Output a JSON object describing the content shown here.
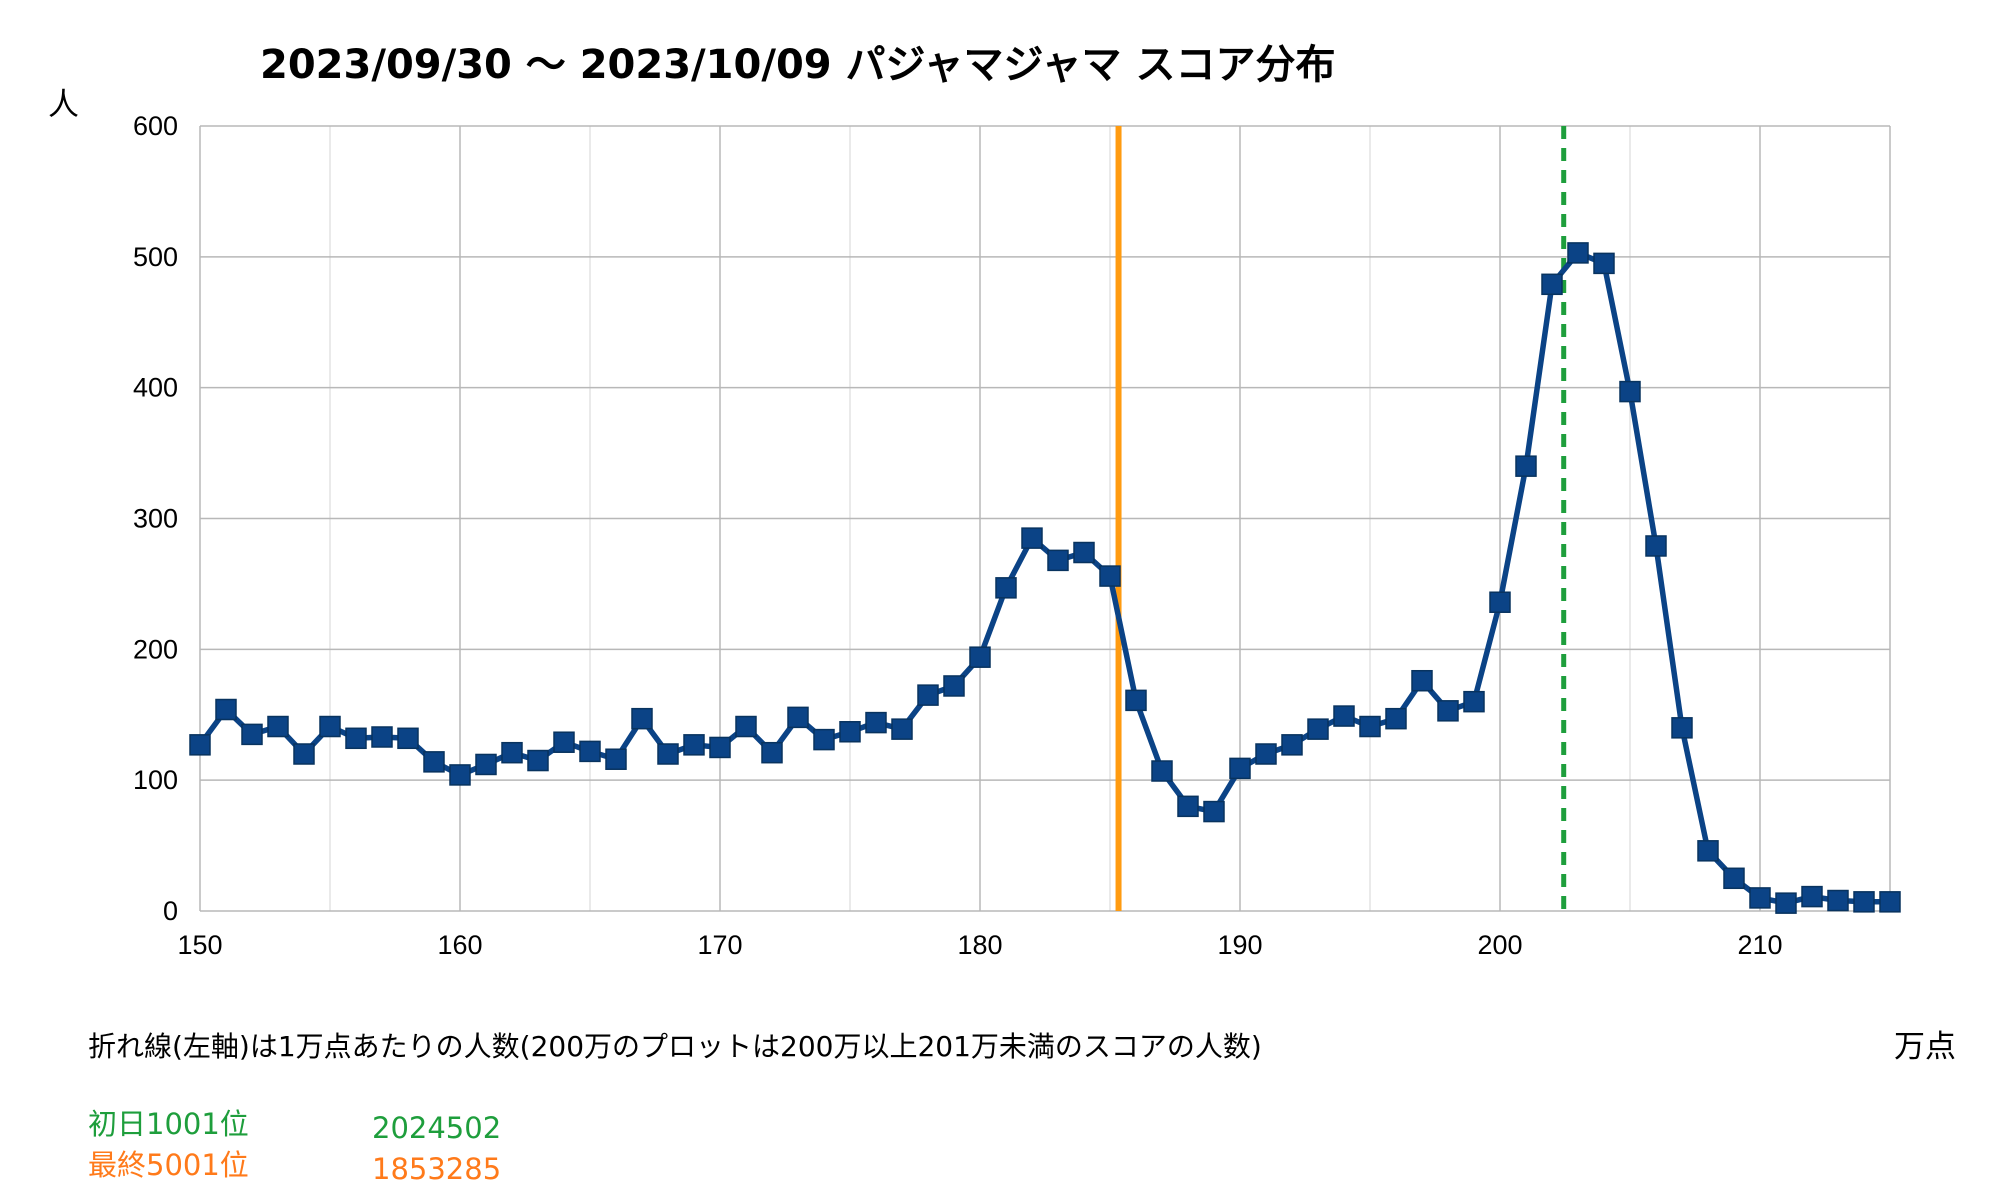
{
  "chart_data": {
    "type": "line",
    "title": "2023/09/30 〜 2023/10/09 パジャマジャマ スコア分布",
    "ylabel": "人",
    "xlabel": "万点",
    "note": "折れ線(左軸)は1万点あたりの人数(200万のプロットは200万以上201万未満のスコアの人数)",
    "xlim": [
      150,
      215
    ],
    "ylim": [
      0,
      600
    ],
    "x_ticks": [
      "150",
      "160",
      "170",
      "180",
      "190",
      "200",
      "210"
    ],
    "y_ticks": [
      "0",
      "100",
      "200",
      "300",
      "400",
      "500",
      "600"
    ],
    "grid": true,
    "series": [
      {
        "color": "#0b4386",
        "x": [
          150,
          151,
          152,
          153,
          154,
          155,
          156,
          157,
          158,
          159,
          160,
          161,
          162,
          163,
          164,
          165,
          166,
          167,
          168,
          169,
          170,
          171,
          172,
          173,
          174,
          175,
          176,
          177,
          178,
          179,
          180,
          181,
          182,
          183,
          184,
          185,
          186,
          187,
          188,
          189,
          190,
          191,
          192,
          193,
          194,
          195,
          196,
          197,
          198,
          199,
          200,
          201,
          202,
          203,
          204,
          205,
          206,
          207,
          208,
          209,
          210,
          211,
          212,
          213,
          214,
          215
        ],
        "y": [
          127,
          154,
          135,
          141,
          120,
          141,
          132,
          133,
          132,
          114,
          104,
          112,
          121,
          115,
          129,
          122,
          116,
          147,
          120,
          127,
          125,
          141,
          121,
          148,
          131,
          137,
          144,
          139,
          165,
          172,
          194,
          247,
          285,
          268,
          274,
          256,
          161,
          107,
          80,
          76,
          109,
          120,
          127,
          139,
          149,
          141,
          147,
          176,
          153,
          160,
          236,
          340,
          479,
          503,
          495,
          397,
          279,
          140,
          46,
          25,
          10,
          6,
          11,
          8,
          7,
          7
        ]
      }
    ],
    "reference_lines": [
      {
        "label": "初日1001位",
        "value": 2024502,
        "value_label": "2024502",
        "x": 202.4502,
        "color": "#1e9e3c",
        "style": "dashed"
      },
      {
        "label": "最終5001位",
        "value": 1853285,
        "value_label": "1853285",
        "x": 185.3285,
        "color": "#ff9b10",
        "style": "solid"
      }
    ],
    "legend_placement": "bottom-left"
  }
}
